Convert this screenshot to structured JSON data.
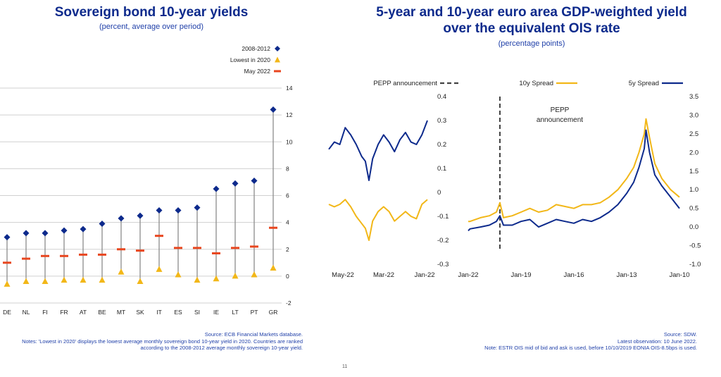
{
  "page_number": "11",
  "chart_data": [
    {
      "type": "line",
      "title": "5-year and 10-year euro area GDP-weighted yield over the equivalent OIS rate",
      "subtitle": "(percentage points)",
      "legend": [
        "5y Spread",
        "10y Spread",
        "PEPP announcement"
      ],
      "annotation": "PEPP announcement",
      "left_panel": {
        "x_ticks": [
          "Jan-10",
          "Jan-13",
          "Jan-16",
          "Jan-19",
          "Jan-22"
        ],
        "y_ticks": [
          "3.5",
          "3.0",
          "2.5",
          "2.0",
          "1.5",
          "1.0",
          "0.5",
          "0.0",
          "-0.5",
          "-1.0"
        ],
        "ylim": [
          -1.0,
          3.5
        ],
        "pepp_x": 2020.2,
        "series": [
          {
            "name": "5y Spread",
            "color": "#0d2a8c",
            "points": [
              [
                2010.0,
                0.5
              ],
              [
                2010.5,
                0.8
              ],
              [
                2011.0,
                1.1
              ],
              [
                2011.4,
                1.4
              ],
              [
                2011.7,
                2.0
              ],
              [
                2011.9,
                2.6
              ],
              [
                2012.0,
                2.1
              ],
              [
                2012.3,
                1.6
              ],
              [
                2012.6,
                1.2
              ],
              [
                2013.0,
                0.9
              ],
              [
                2013.5,
                0.6
              ],
              [
                2014.0,
                0.4
              ],
              [
                2014.5,
                0.25
              ],
              [
                2015.0,
                0.15
              ],
              [
                2015.5,
                0.2
              ],
              [
                2016.0,
                0.1
              ],
              [
                2016.5,
                0.15
              ],
              [
                2017.0,
                0.2
              ],
              [
                2017.5,
                0.1
              ],
              [
                2018.0,
                0.0
              ],
              [
                2018.5,
                0.2
              ],
              [
                2019.0,
                0.15
              ],
              [
                2019.5,
                0.05
              ],
              [
                2020.0,
                0.05
              ],
              [
                2020.2,
                0.3
              ],
              [
                2020.4,
                0.15
              ],
              [
                2020.8,
                0.05
              ],
              [
                2021.3,
                0.0
              ],
              [
                2021.9,
                -0.05
              ],
              [
                2022.0,
                -0.1
              ]
            ]
          },
          {
            "name": "10y Spread",
            "color": "#f2b718",
            "points": [
              [
                2010.0,
                0.8
              ],
              [
                2010.5,
                1.0
              ],
              [
                2011.0,
                1.3
              ],
              [
                2011.4,
                1.7
              ],
              [
                2011.7,
                2.4
              ],
              [
                2011.9,
                2.9
              ],
              [
                2012.0,
                2.5
              ],
              [
                2012.3,
                2.0
              ],
              [
                2012.6,
                1.6
              ],
              [
                2013.0,
                1.3
              ],
              [
                2013.5,
                1.0
              ],
              [
                2014.0,
                0.8
              ],
              [
                2014.5,
                0.65
              ],
              [
                2015.0,
                0.6
              ],
              [
                2015.5,
                0.6
              ],
              [
                2016.0,
                0.5
              ],
              [
                2016.5,
                0.55
              ],
              [
                2017.0,
                0.6
              ],
              [
                2017.5,
                0.45
              ],
              [
                2018.0,
                0.4
              ],
              [
                2018.5,
                0.5
              ],
              [
                2019.0,
                0.4
              ],
              [
                2019.5,
                0.3
              ],
              [
                2020.0,
                0.25
              ],
              [
                2020.2,
                0.65
              ],
              [
                2020.4,
                0.4
              ],
              [
                2020.8,
                0.3
              ],
              [
                2021.3,
                0.25
              ],
              [
                2021.9,
                0.15
              ],
              [
                2022.0,
                0.15
              ]
            ]
          }
        ]
      },
      "right_panel": {
        "x_ticks": [
          "Jan-22",
          "Mar-22",
          "May-22"
        ],
        "y_ticks": [
          "0.4",
          "0.3",
          "0.2",
          "0.1",
          "0",
          "-0.1",
          "-0.2",
          "-0.3"
        ],
        "ylim": [
          -0.3,
          0.4
        ],
        "xlim": [
          0,
          5.4
        ],
        "series": [
          {
            "name": "5y Spread",
            "color": "#0d2a8c",
            "points": [
              [
                0.0,
                0.18
              ],
              [
                0.3,
                0.21
              ],
              [
                0.6,
                0.2
              ],
              [
                0.9,
                0.27
              ],
              [
                1.2,
                0.24
              ],
              [
                1.5,
                0.2
              ],
              [
                1.8,
                0.15
              ],
              [
                2.0,
                0.13
              ],
              [
                2.2,
                0.05
              ],
              [
                2.4,
                0.14
              ],
              [
                2.7,
                0.2
              ],
              [
                3.0,
                0.24
              ],
              [
                3.3,
                0.21
              ],
              [
                3.6,
                0.17
              ],
              [
                3.9,
                0.22
              ],
              [
                4.2,
                0.25
              ],
              [
                4.5,
                0.21
              ],
              [
                4.8,
                0.2
              ],
              [
                5.1,
                0.24
              ],
              [
                5.4,
                0.3
              ]
            ]
          },
          {
            "name": "10y Spread",
            "color": "#f2b718",
            "points": [
              [
                0.0,
                -0.05
              ],
              [
                0.3,
                -0.06
              ],
              [
                0.6,
                -0.05
              ],
              [
                0.9,
                -0.03
              ],
              [
                1.2,
                -0.06
              ],
              [
                1.5,
                -0.1
              ],
              [
                1.8,
                -0.13
              ],
              [
                2.0,
                -0.15
              ],
              [
                2.2,
                -0.2
              ],
              [
                2.4,
                -0.12
              ],
              [
                2.7,
                -0.08
              ],
              [
                3.0,
                -0.06
              ],
              [
                3.3,
                -0.08
              ],
              [
                3.6,
                -0.12
              ],
              [
                3.9,
                -0.1
              ],
              [
                4.2,
                -0.08
              ],
              [
                4.5,
                -0.1
              ],
              [
                4.8,
                -0.11
              ],
              [
                5.1,
                -0.05
              ],
              [
                5.4,
                -0.03
              ]
            ]
          }
        ]
      },
      "notes": [
        "Source: SDW.",
        "Latest observation: 10 June 2022.",
        "Note: ESTR OIS mid of bid and ask is used, before 10/10/2019 EONIA OIS-8.5bps is used."
      ]
    },
    {
      "type": "scatter",
      "title": "Sovereign bond 10-year yields",
      "subtitle": "(percent, average over period)",
      "legend": [
        "2008-2012",
        "Lowest in 2020",
        "May 2022"
      ],
      "y_ticks": [
        "14",
        "12",
        "10",
        "8",
        "6",
        "4",
        "2",
        "0",
        "-2"
      ],
      "ylim": [
        -2,
        14
      ],
      "categories": [
        "GR",
        "PT",
        "LT",
        "IE",
        "SI",
        "ES",
        "IT",
        "SK",
        "MT",
        "BE",
        "AT",
        "FR",
        "FI",
        "NL",
        "DE"
      ],
      "series": [
        {
          "name": "2008-2012",
          "color": "#0d2a8c",
          "values": [
            12.4,
            7.1,
            6.9,
            6.5,
            5.1,
            4.9,
            4.9,
            4.5,
            4.3,
            3.9,
            3.5,
            3.4,
            3.2,
            3.2,
            2.9
          ]
        },
        {
          "name": "Lowest in 2020",
          "color": "#f2b718",
          "values": [
            0.6,
            0.1,
            0.0,
            -0.2,
            -0.3,
            0.1,
            0.5,
            -0.4,
            0.3,
            -0.3,
            -0.3,
            -0.3,
            -0.4,
            -0.4,
            -0.6
          ]
        },
        {
          "name": "May 2022",
          "color": "#e8461f",
          "values": [
            3.6,
            2.2,
            2.1,
            1.7,
            2.1,
            2.1,
            3.0,
            1.9,
            2.0,
            1.6,
            1.6,
            1.5,
            1.5,
            1.3,
            1.0
          ]
        }
      ],
      "notes": [
        "Source: ECB Financial Markets database.",
        "Notes: 'Lowest in 2020' displays the lowest average monthly sovereign bond 10-year yield in 2020. Countries are ranked according to the 2008-2012 average monthly sovereign 10-year yield."
      ]
    }
  ]
}
